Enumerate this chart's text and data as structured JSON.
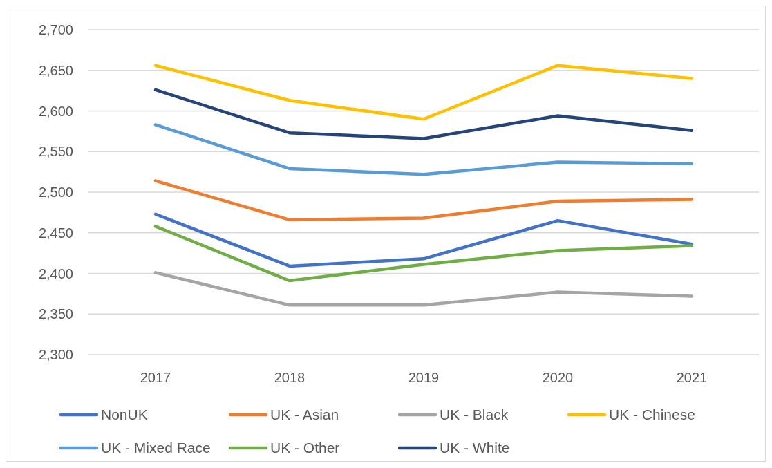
{
  "chart_data": {
    "type": "line",
    "categories": [
      "2017",
      "2018",
      "2019",
      "2020",
      "2021"
    ],
    "series": [
      {
        "name": "NonUK",
        "color": "#4472c4",
        "values": [
          2473,
          2409,
          2418,
          2465,
          2436
        ]
      },
      {
        "name": "UK - Asian",
        "color": "#ed7d31",
        "values": [
          2514,
          2466,
          2468,
          2489,
          2491
        ]
      },
      {
        "name": "UK - Black",
        "color": "#a5a5a5",
        "values": [
          2401,
          2361,
          2361,
          2377,
          2372
        ]
      },
      {
        "name": "UK - Chinese",
        "color": "#ffc000",
        "values": [
          2656,
          2613,
          2590,
          2656,
          2640
        ]
      },
      {
        "name": "UK - Mixed Race",
        "color": "#5b9bd5",
        "values": [
          2583,
          2529,
          2522,
          2537,
          2535
        ]
      },
      {
        "name": "UK - Other",
        "color": "#70ad47",
        "values": [
          2458,
          2391,
          2411,
          2428,
          2434
        ]
      },
      {
        "name": "UK - White",
        "color": "#264478",
        "values": [
          2626,
          2573,
          2566,
          2594,
          2576
        ]
      }
    ],
    "ylim": [
      2300,
      2700
    ],
    "yticks": [
      {
        "value": 2300,
        "label": "2,300"
      },
      {
        "value": 2350,
        "label": "2,350"
      },
      {
        "value": 2400,
        "label": "2,400"
      },
      {
        "value": 2450,
        "label": "2,450"
      },
      {
        "value": 2500,
        "label": "2,500"
      },
      {
        "value": 2550,
        "label": "2,550"
      },
      {
        "value": 2600,
        "label": "2,600"
      },
      {
        "value": 2650,
        "label": "2,650"
      },
      {
        "value": 2700,
        "label": "2,700"
      }
    ],
    "grid": "y",
    "legend": "bottom",
    "marker": "none",
    "line_style": "solid"
  }
}
